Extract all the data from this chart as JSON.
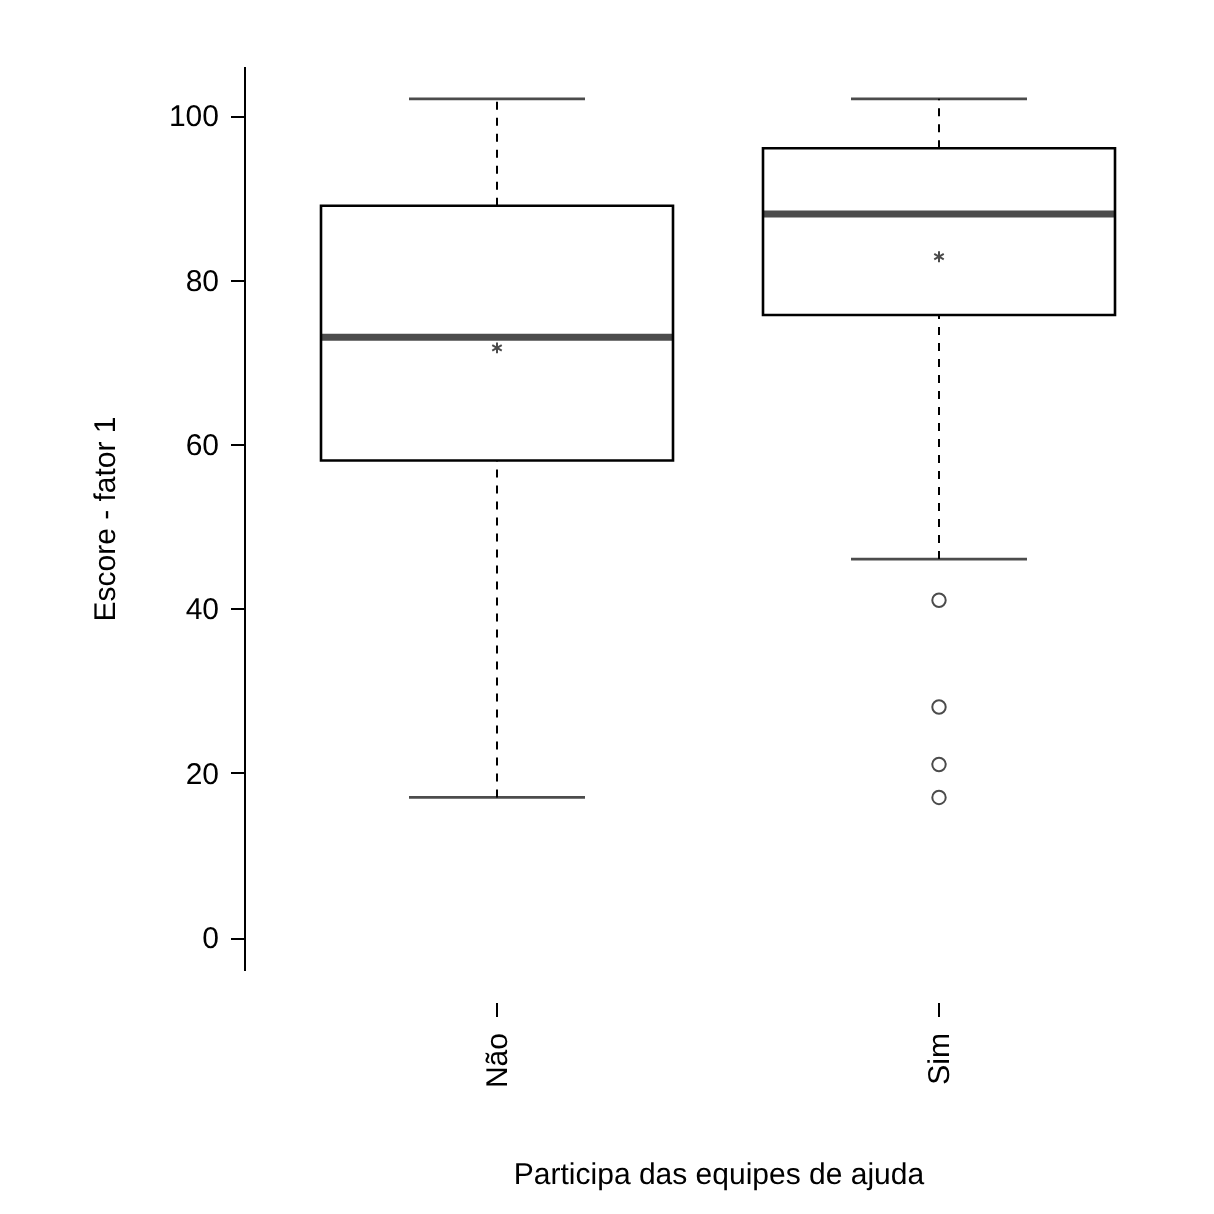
{
  "chart_data": {
    "type": "box",
    "xlabel": "Participa das equipes de ajuda",
    "ylabel": "Escore - fator 1",
    "categories": [
      "Não",
      "Sim"
    ],
    "boxes": [
      {
        "low": 17,
        "q1": 58,
        "median": 73,
        "q3": 89,
        "high": 102,
        "mean": 71.7
      },
      {
        "low": 46,
        "q1": 75.7,
        "median": 88,
        "q3": 96,
        "high": 102,
        "mean": 82.8,
        "outliers": [
          41,
          28,
          21,
          17
        ]
      }
    ],
    "ylim": [
      -4,
      106
    ],
    "yticks": [
      0,
      20,
      40,
      60,
      80,
      100
    ],
    "grid": false
  }
}
